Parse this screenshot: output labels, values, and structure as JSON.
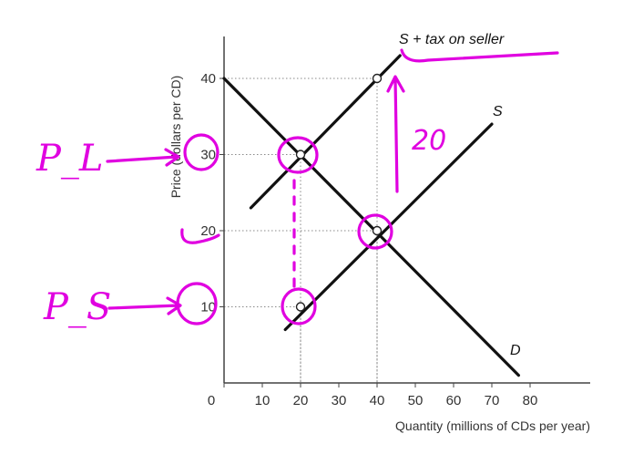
{
  "chart_data": {
    "type": "line",
    "title": "",
    "xlabel": "Quantity (millions of CDs per year)",
    "ylabel": "Price (dollars per CD)",
    "xlim": [
      0,
      85
    ],
    "ylim": [
      0,
      45
    ],
    "x_ticks": [
      "0",
      "10",
      "20",
      "30",
      "40",
      "50",
      "60",
      "70",
      "80"
    ],
    "y_ticks": [
      "10",
      "20",
      "30",
      "40"
    ],
    "grid": false,
    "series": [
      {
        "name": "D",
        "points": [
          [
            0,
            40
          ],
          [
            77,
            1
          ]
        ]
      },
      {
        "name": "S",
        "points": [
          [
            16,
            7
          ],
          [
            70,
            34
          ]
        ]
      },
      {
        "name": "S + tax on seller",
        "points": [
          [
            7,
            23
          ],
          [
            46,
            43
          ]
        ]
      }
    ],
    "reference_points": [
      {
        "x": 40,
        "y": 40
      },
      {
        "x": 40,
        "y": 20
      },
      {
        "x": 20,
        "y": 30
      },
      {
        "x": 20,
        "y": 10
      }
    ],
    "annotations": {
      "buyer_price": "P_L",
      "seller_price": "P_S",
      "tax_amount": "20"
    }
  },
  "colors": {
    "axis": "#444444",
    "curve": "#111111",
    "guide": "#888888",
    "ink": "#e000e0"
  }
}
